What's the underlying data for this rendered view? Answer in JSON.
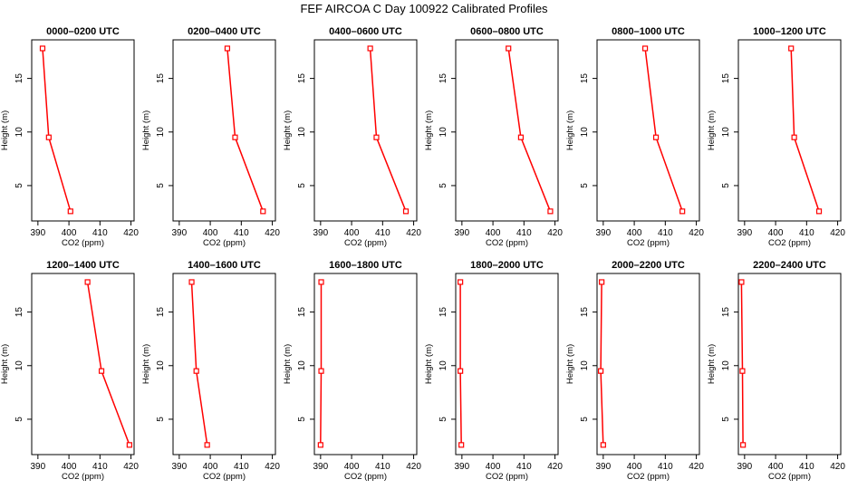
{
  "figure": {
    "title": "FEF AIRCOA C  Day 100922  Calibrated Profiles"
  },
  "colors": {
    "series": "#ff0000",
    "axis": "#000000",
    "background": "#ffffff"
  },
  "chart_data": [
    {
      "type": "line",
      "title": "0000–0200 UTC",
      "xlabel": "CO2 (ppm)",
      "ylabel": "Height (m)",
      "xlim": [
        388,
        421
      ],
      "ylim": [
        1.7,
        18.6
      ],
      "xticks": [
        390,
        400,
        410,
        420
      ],
      "yticks": [
        5,
        10,
        15
      ],
      "points": [
        {
          "x": 400.5,
          "y": 2.6
        },
        {
          "x": 393.5,
          "y": 9.5
        },
        {
          "x": 391.5,
          "y": 17.8
        }
      ]
    },
    {
      "type": "line",
      "title": "0200–0400 UTC",
      "xlabel": "CO2 (ppm)",
      "ylabel": "Height (m)",
      "xlim": [
        388,
        421
      ],
      "ylim": [
        1.7,
        18.6
      ],
      "xticks": [
        390,
        400,
        410,
        420
      ],
      "yticks": [
        5,
        10,
        15
      ],
      "points": [
        {
          "x": 417,
          "y": 2.6
        },
        {
          "x": 408,
          "y": 9.5
        },
        {
          "x": 405.5,
          "y": 17.8
        }
      ]
    },
    {
      "type": "line",
      "title": "0400–0600 UTC",
      "xlabel": "CO2 (ppm)",
      "ylabel": "Height (m)",
      "xlim": [
        388,
        421
      ],
      "ylim": [
        1.7,
        18.6
      ],
      "xticks": [
        390,
        400,
        410,
        420
      ],
      "yticks": [
        5,
        10,
        15
      ],
      "points": [
        {
          "x": 417.5,
          "y": 2.6
        },
        {
          "x": 408,
          "y": 9.5
        },
        {
          "x": 406,
          "y": 17.8
        }
      ]
    },
    {
      "type": "line",
      "title": "0600–0800 UTC",
      "xlabel": "CO2 (ppm)",
      "ylabel": "Height (m)",
      "xlim": [
        388,
        421
      ],
      "ylim": [
        1.7,
        18.6
      ],
      "xticks": [
        390,
        400,
        410,
        420
      ],
      "yticks": [
        5,
        10,
        15
      ],
      "points": [
        {
          "x": 418.5,
          "y": 2.6
        },
        {
          "x": 409,
          "y": 9.5
        },
        {
          "x": 405,
          "y": 17.8
        }
      ]
    },
    {
      "type": "line",
      "title": "0800–1000 UTC",
      "xlabel": "CO2 (ppm)",
      "ylabel": "Height (m)",
      "xlim": [
        388,
        421
      ],
      "ylim": [
        1.7,
        18.6
      ],
      "xticks": [
        390,
        400,
        410,
        420
      ],
      "yticks": [
        5,
        10,
        15
      ],
      "points": [
        {
          "x": 415.5,
          "y": 2.6
        },
        {
          "x": 407,
          "y": 9.5
        },
        {
          "x": 403.5,
          "y": 17.8
        }
      ]
    },
    {
      "type": "line",
      "title": "1000–1200 UTC",
      "xlabel": "CO2 (ppm)",
      "ylabel": "Height (m)",
      "xlim": [
        388,
        421
      ],
      "ylim": [
        1.7,
        18.6
      ],
      "xticks": [
        390,
        400,
        410,
        420
      ],
      "yticks": [
        5,
        10,
        15
      ],
      "points": [
        {
          "x": 414,
          "y": 2.6
        },
        {
          "x": 406,
          "y": 9.5
        },
        {
          "x": 405,
          "y": 17.8
        }
      ]
    },
    {
      "type": "line",
      "title": "1200–1400 UTC",
      "xlabel": "CO2 (ppm)",
      "ylabel": "Height (m)",
      "xlim": [
        388,
        421
      ],
      "ylim": [
        1.7,
        18.6
      ],
      "xticks": [
        390,
        400,
        410,
        420
      ],
      "yticks": [
        5,
        10,
        15
      ],
      "points": [
        {
          "x": 419.5,
          "y": 2.6
        },
        {
          "x": 410.5,
          "y": 9.5
        },
        {
          "x": 406,
          "y": 17.8
        }
      ]
    },
    {
      "type": "line",
      "title": "1400–1600 UTC",
      "xlabel": "CO2 (ppm)",
      "ylabel": "Height (m)",
      "xlim": [
        388,
        421
      ],
      "ylim": [
        1.7,
        18.6
      ],
      "xticks": [
        390,
        400,
        410,
        420
      ],
      "yticks": [
        5,
        10,
        15
      ],
      "points": [
        {
          "x": 399,
          "y": 2.6
        },
        {
          "x": 395.5,
          "y": 9.5
        },
        {
          "x": 394,
          "y": 17.8
        }
      ]
    },
    {
      "type": "line",
      "title": "1600–1800 UTC",
      "xlabel": "CO2 (ppm)",
      "ylabel": "Height (m)",
      "xlim": [
        388,
        421
      ],
      "ylim": [
        1.7,
        18.6
      ],
      "xticks": [
        390,
        400,
        410,
        420
      ],
      "yticks": [
        5,
        10,
        15
      ],
      "points": [
        {
          "x": 390,
          "y": 2.6
        },
        {
          "x": 390.2,
          "y": 9.5
        },
        {
          "x": 390.2,
          "y": 17.8
        }
      ]
    },
    {
      "type": "line",
      "title": "1800–2000 UTC",
      "xlabel": "CO2 (ppm)",
      "ylabel": "Height (m)",
      "xlim": [
        388,
        421
      ],
      "ylim": [
        1.7,
        18.6
      ],
      "xticks": [
        390,
        400,
        410,
        420
      ],
      "yticks": [
        5,
        10,
        15
      ],
      "points": [
        {
          "x": 389.8,
          "y": 2.6
        },
        {
          "x": 389.5,
          "y": 9.5
        },
        {
          "x": 389.5,
          "y": 17.8
        }
      ]
    },
    {
      "type": "line",
      "title": "2000–2200 UTC",
      "xlabel": "CO2 (ppm)",
      "ylabel": "Height (m)",
      "xlim": [
        388,
        421
      ],
      "ylim": [
        1.7,
        18.6
      ],
      "xticks": [
        390,
        400,
        410,
        420
      ],
      "yticks": [
        5,
        10,
        15
      ],
      "points": [
        {
          "x": 390,
          "y": 2.6
        },
        {
          "x": 389.2,
          "y": 9.5
        },
        {
          "x": 389.5,
          "y": 17.8
        }
      ]
    },
    {
      "type": "line",
      "title": "2200–2400 UTC",
      "xlabel": "CO2 (ppm)",
      "ylabel": "Height (m)",
      "xlim": [
        388,
        421
      ],
      "ylim": [
        1.7,
        18.6
      ],
      "xticks": [
        390,
        400,
        410,
        420
      ],
      "yticks": [
        5,
        10,
        15
      ],
      "points": [
        {
          "x": 389.5,
          "y": 2.6
        },
        {
          "x": 389.3,
          "y": 9.5
        },
        {
          "x": 389,
          "y": 17.8
        }
      ]
    }
  ]
}
